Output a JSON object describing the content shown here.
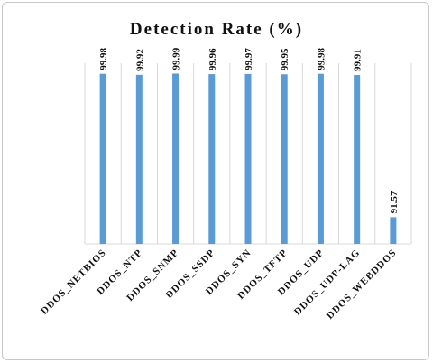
{
  "chart_data": {
    "type": "bar",
    "title": "Detection Rate (%)",
    "xlabel": "",
    "ylabel": "",
    "categories": [
      "DDOS_NETBIOS",
      "DDOS_NTP",
      "DDOS_SNMP",
      "DDOS_SSDP",
      "DDOS_SYN",
      "DDOS_TFTP",
      "DDOS_UDP",
      "DDOS_UDP-LAG",
      "DDOS_WEBDDOS"
    ],
    "values": [
      99.98,
      99.92,
      99.99,
      99.96,
      99.97,
      99.95,
      99.98,
      99.91,
      91.57
    ],
    "value_labels": [
      "99.98",
      "99.92",
      "99.99",
      "99.96",
      "99.97",
      "99.95",
      "99.98",
      "99.91",
      "91.57"
    ],
    "ylim": [
      90,
      100.6
    ],
    "grid": true,
    "legend": "none",
    "bar_color": "#5b9bd5"
  }
}
